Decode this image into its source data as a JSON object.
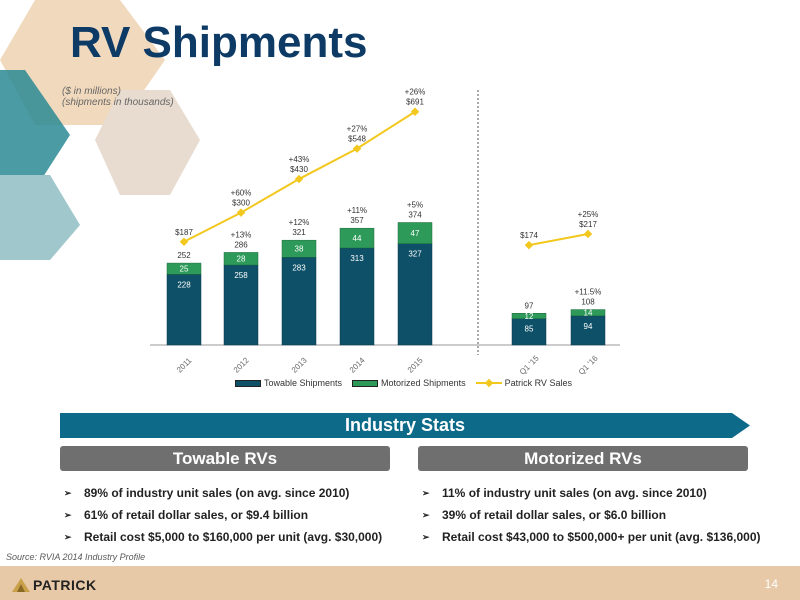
{
  "header": {
    "title": "RV Shipments",
    "subtitle_line1": "($ in millions)",
    "subtitle_line2": "(shipments in thousands)"
  },
  "colors": {
    "towable": "#0e5068",
    "motorized": "#2e9a5a",
    "sales_line": "#f2c81f",
    "title": "#0d3b66",
    "banner": "#0d6a88",
    "pill": "#6f6f6f",
    "footer": "#e8c9a7"
  },
  "chart_data": {
    "type": "bar",
    "stacked": true,
    "categories": [
      "2011",
      "2012",
      "2013",
      "2014",
      "2015",
      "Q1 '15",
      "Q1 '16"
    ],
    "series": [
      {
        "name": "Towable Shipments",
        "values": [
          228,
          258,
          283,
          313,
          327,
          85,
          94
        ]
      },
      {
        "name": "Motorized Shipments",
        "values": [
          25,
          28,
          38,
          44,
          47,
          12,
          14
        ]
      }
    ],
    "totals": [
      "252",
      "286",
      "321",
      "357",
      "374",
      "97",
      "108"
    ],
    "shipment_growth": [
      "",
      "+13%",
      "+12%",
      "+11%",
      "+5%",
      "",
      "+11.5%"
    ],
    "line": {
      "name": "Patrick RV Sales",
      "values": [
        187,
        300,
        430,
        548,
        691,
        174,
        217
      ],
      "labels": [
        "$187",
        "$300",
        "$430",
        "$548",
        "$691",
        "$174",
        "$217"
      ],
      "growth": [
        "",
        "+60%",
        "+43%",
        "+27%",
        "+26%",
        "",
        "+25%"
      ]
    },
    "legend": [
      "Towable Shipments",
      "Motorized Shipments",
      "Patrick RV Sales"
    ],
    "legend_position": "bottom",
    "grid": false
  },
  "section": {
    "banner": "Industry Stats",
    "left_title": "Towable RVs",
    "right_title": "Motorized RVs",
    "left_bullets": [
      "89% of industry unit sales (on avg. since 2010)",
      "61% of retail dollar sales, or $9.4 billion",
      "Retail cost $5,000 to $160,000 per unit (avg. $30,000)"
    ],
    "right_bullets": [
      "11% of industry unit sales (on avg. since 2010)",
      "39% of retail dollar sales, or $6.0 billion",
      "Retail cost $43,000 to $500,000+ per unit (avg. $136,000)"
    ],
    "bullet_icon": "chevron-right-icon"
  },
  "footer": {
    "source": "Source: RVIA 2014 Industry Profile",
    "logo_text": "PATRICK",
    "page_number": "14"
  }
}
